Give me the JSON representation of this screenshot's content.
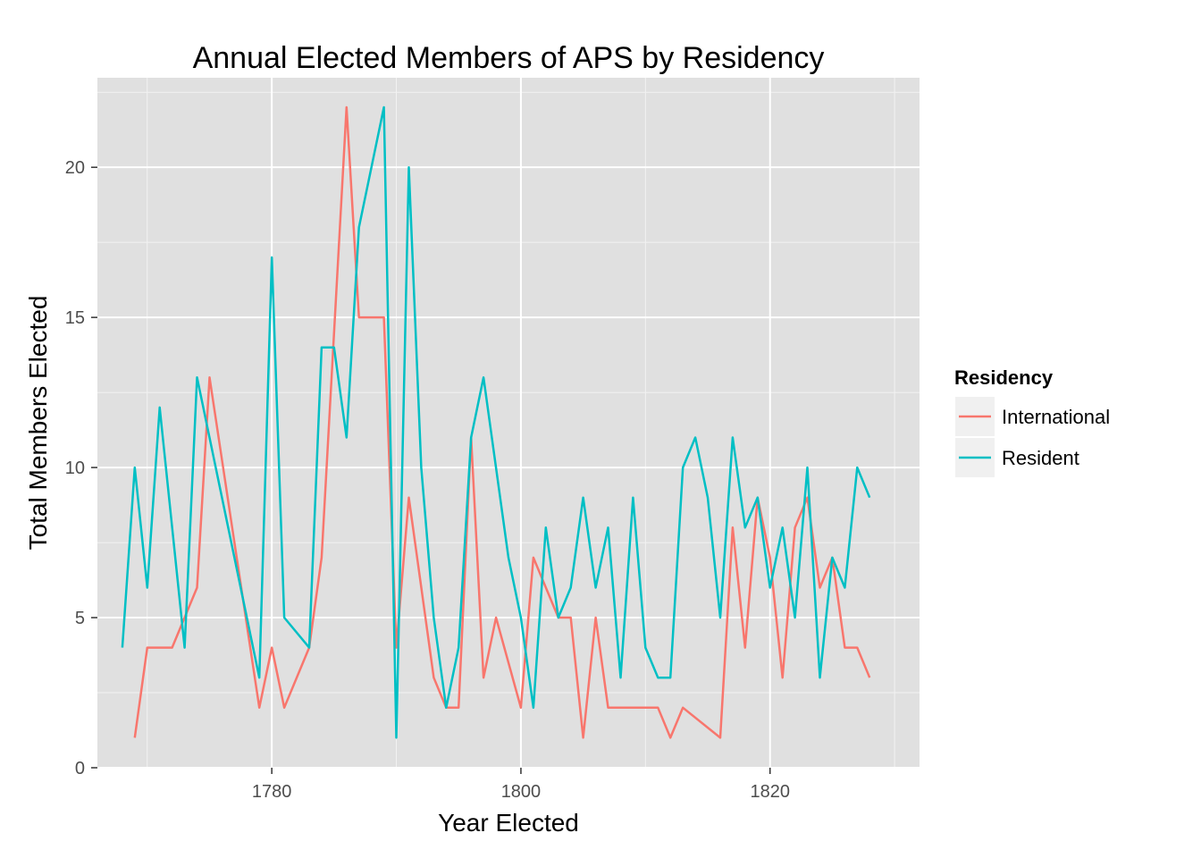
{
  "chart_data": {
    "type": "line",
    "title": "Annual Elected Members of APS by Residency",
    "xlabel": "Year Elected",
    "ylabel": "Total Members Elected",
    "xlim": [
      1766,
      1832
    ],
    "ylim": [
      0,
      22
    ],
    "x_ticks": [
      1780,
      1800,
      1820
    ],
    "x_tick_labels": [
      "1780",
      "1800",
      "1820"
    ],
    "y_ticks": [
      0,
      5,
      10,
      15,
      20
    ],
    "y_tick_labels": [
      "0",
      "5",
      "10",
      "15",
      "20"
    ],
    "grid": true,
    "legend": {
      "title": "Residency",
      "position": "right"
    },
    "series": [
      {
        "name": "International",
        "color": "#F8766D",
        "points": [
          [
            1769,
            1
          ],
          [
            1770,
            4
          ],
          [
            1771,
            4
          ],
          [
            1772,
            4
          ],
          [
            1774,
            6
          ],
          [
            1775,
            13
          ],
          [
            1779,
            2
          ],
          [
            1780,
            4
          ],
          [
            1781,
            2
          ],
          [
            1783,
            4
          ],
          [
            1784,
            7
          ],
          [
            1786,
            22
          ],
          [
            1787,
            15
          ],
          [
            1788,
            15
          ],
          [
            1789,
            15
          ],
          [
            1790,
            4
          ],
          [
            1791,
            9
          ],
          [
            1793,
            3
          ],
          [
            1794,
            2
          ],
          [
            1795,
            2
          ],
          [
            1796,
            11
          ],
          [
            1797,
            3
          ],
          [
            1798,
            5
          ],
          [
            1800,
            2
          ],
          [
            1801,
            7
          ],
          [
            1803,
            5
          ],
          [
            1804,
            5
          ],
          [
            1805,
            1
          ],
          [
            1806,
            5
          ],
          [
            1807,
            2
          ],
          [
            1808,
            2
          ],
          [
            1809,
            2
          ],
          [
            1810,
            2
          ],
          [
            1811,
            2
          ],
          [
            1812,
            1
          ],
          [
            1813,
            2
          ],
          [
            1816,
            1
          ],
          [
            1817,
            8
          ],
          [
            1818,
            4
          ],
          [
            1819,
            9
          ],
          [
            1820,
            7
          ],
          [
            1821,
            3
          ],
          [
            1822,
            8
          ],
          [
            1823,
            9
          ],
          [
            1824,
            6
          ],
          [
            1825,
            7
          ],
          [
            1826,
            4
          ],
          [
            1827,
            4
          ],
          [
            1828,
            3
          ]
        ]
      },
      {
        "name": "Resident",
        "color": "#00BFC4",
        "points": [
          [
            1768,
            4
          ],
          [
            1769,
            10
          ],
          [
            1770,
            6
          ],
          [
            1771,
            12
          ],
          [
            1773,
            4
          ],
          [
            1774,
            13
          ],
          [
            1779,
            3
          ],
          [
            1780,
            17
          ],
          [
            1781,
            5
          ],
          [
            1783,
            4
          ],
          [
            1784,
            14
          ],
          [
            1785,
            14
          ],
          [
            1786,
            11
          ],
          [
            1787,
            18
          ],
          [
            1789,
            22
          ],
          [
            1790,
            1
          ],
          [
            1791,
            20
          ],
          [
            1792,
            10
          ],
          [
            1793,
            5
          ],
          [
            1794,
            2
          ],
          [
            1795,
            4
          ],
          [
            1796,
            11
          ],
          [
            1797,
            13
          ],
          [
            1799,
            7
          ],
          [
            1800,
            5
          ],
          [
            1801,
            2
          ],
          [
            1802,
            8
          ],
          [
            1803,
            5
          ],
          [
            1804,
            6
          ],
          [
            1805,
            9
          ],
          [
            1806,
            6
          ],
          [
            1807,
            8
          ],
          [
            1808,
            3
          ],
          [
            1809,
            9
          ],
          [
            1810,
            4
          ],
          [
            1811,
            3
          ],
          [
            1812,
            3
          ],
          [
            1813,
            10
          ],
          [
            1814,
            11
          ],
          [
            1815,
            9
          ],
          [
            1816,
            5
          ],
          [
            1817,
            11
          ],
          [
            1818,
            8
          ],
          [
            1819,
            9
          ],
          [
            1820,
            6
          ],
          [
            1821,
            8
          ],
          [
            1822,
            5
          ],
          [
            1823,
            10
          ],
          [
            1824,
            3
          ],
          [
            1825,
            7
          ],
          [
            1826,
            6
          ],
          [
            1827,
            10
          ],
          [
            1828,
            9
          ]
        ]
      }
    ]
  }
}
